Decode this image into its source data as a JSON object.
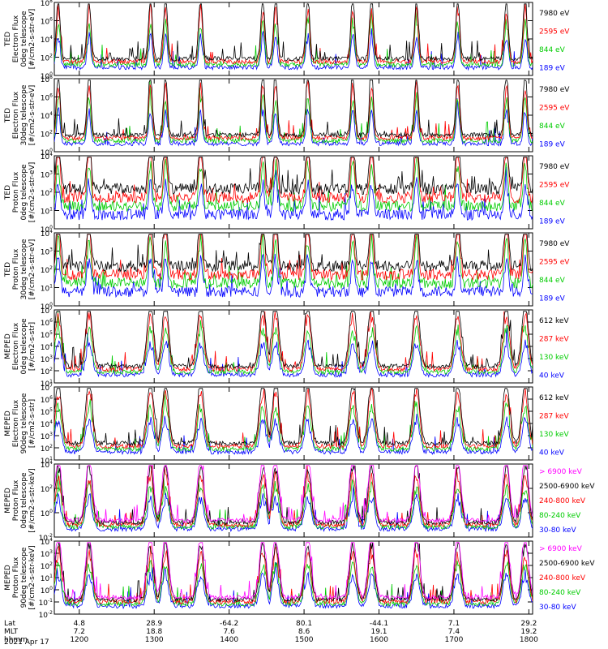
{
  "chart_data": {
    "type": "line",
    "date_label": "2021 Apr 17",
    "x_rows": [
      {
        "label": "Lat",
        "values": [
          "4.8",
          "28.9",
          "-64.2",
          "80.1",
          "-44.1",
          "7.1",
          "29.2"
        ]
      },
      {
        "label": "MLT",
        "values": [
          "7.2",
          "18.8",
          "7.6",
          "8.6",
          "19.1",
          "7.4",
          "19.2"
        ]
      },
      {
        "label": "hhmm",
        "values": [
          "1200",
          "1300",
          "1400",
          "1500",
          "1600",
          "1700",
          "1800"
        ]
      }
    ],
    "x_hours": [
      12,
      13,
      14,
      15,
      16,
      17,
      18
    ],
    "panels": [
      {
        "ylabel": [
          "TED",
          "Electron Flux",
          "0deg telescope",
          "[#/cm2-s-str-eV]"
        ],
        "ytick_exponents": [
          0,
          2,
          4,
          6,
          8
        ],
        "series": [
          {
            "name": "7980 eV",
            "color": "#000000"
          },
          {
            "name": "2595 eV",
            "color": "#ff0000"
          },
          {
            "name": "844 eV",
            "color": "#00cc00"
          },
          {
            "name": "189 eV",
            "color": "#0000ff"
          }
        ]
      },
      {
        "ylabel": [
          "TED",
          "Electron Flux",
          "30deg telescope",
          "[#/cm2-s-str-eV]"
        ],
        "ytick_exponents": [
          0,
          2,
          4,
          6,
          8
        ],
        "series": [
          {
            "name": "7980 eV",
            "color": "#000000"
          },
          {
            "name": "2595 eV",
            "color": "#ff0000"
          },
          {
            "name": "844 eV",
            "color": "#00cc00"
          },
          {
            "name": "189 eV",
            "color": "#0000ff"
          }
        ]
      },
      {
        "ylabel": [
          "TED",
          "Proton Flux",
          "0deg telescope",
          "[#/cm2-s-str-eV]"
        ],
        "ytick_exponents": [
          0,
          1,
          2,
          3,
          4
        ],
        "series": [
          {
            "name": "7980 eV",
            "color": "#000000"
          },
          {
            "name": "2595 eV",
            "color": "#ff0000"
          },
          {
            "name": "844 eV",
            "color": "#00cc00"
          },
          {
            "name": "189 eV",
            "color": "#0000ff"
          }
        ]
      },
      {
        "ylabel": [
          "TED",
          "Proton Flux",
          "30deg telescope",
          "[#/cm2-s-str-eV]"
        ],
        "ytick_exponents": [
          0,
          1,
          2,
          3,
          4
        ],
        "series": [
          {
            "name": "7980 eV",
            "color": "#000000"
          },
          {
            "name": "2595 eV",
            "color": "#ff0000"
          },
          {
            "name": "844 eV",
            "color": "#00cc00"
          },
          {
            "name": "189 eV",
            "color": "#0000ff"
          }
        ]
      },
      {
        "ylabel": [
          "MEPED",
          "Electron Flux",
          "0deg telescope",
          "[#/cm2-s-str]"
        ],
        "ytick_exponents": [
          1,
          2,
          3,
          4,
          5,
          6,
          7
        ],
        "series": [
          {
            "name": "612 keV",
            "color": "#000000"
          },
          {
            "name": "287 keV",
            "color": "#ff0000"
          },
          {
            "name": "130 keV",
            "color": "#00cc00"
          },
          {
            "name": "40 keV",
            "color": "#0000ff"
          }
        ]
      },
      {
        "ylabel": [
          "MEPED",
          "Electron Flux",
          "90deg telescope",
          "[#/cm2-s-str]"
        ],
        "ytick_exponents": [
          1,
          2,
          3,
          4,
          5,
          6,
          7
        ],
        "series": [
          {
            "name": "612 keV",
            "color": "#000000"
          },
          {
            "name": "287 keV",
            "color": "#ff0000"
          },
          {
            "name": "130 keV",
            "color": "#00cc00"
          },
          {
            "name": "40 keV",
            "color": "#0000ff"
          }
        ]
      },
      {
        "ylabel": [
          "MEPED",
          "Proton Flux",
          "0deg telescope",
          "[#/cm2-s-str-keV]"
        ],
        "ytick_exponents": [
          -2,
          0,
          2,
          4
        ],
        "series": [
          {
            "name": "> 6900 keV",
            "color": "#ff00ff"
          },
          {
            "name": "2500-6900 keV",
            "color": "#000000"
          },
          {
            "name": "240-800 keV",
            "color": "#ff0000"
          },
          {
            "name": "80-240 keV",
            "color": "#00cc00"
          },
          {
            "name": "30-80 keV",
            "color": "#0000ff"
          }
        ]
      },
      {
        "ylabel": [
          "MEPED",
          "Proton Flux",
          "90deg telescope",
          "[#/cm2-s-str-keV]"
        ],
        "ytick_exponents": [
          -2,
          -1,
          0,
          1,
          2,
          3,
          4
        ],
        "series": [
          {
            "name": "> 6900 keV",
            "color": "#ff00ff"
          },
          {
            "name": "2500-6900 keV",
            "color": "#000000"
          },
          {
            "name": "240-800 keV",
            "color": "#ff0000"
          },
          {
            "name": "80-240 keV",
            "color": "#00cc00"
          },
          {
            "name": "30-80 keV",
            "color": "#0000ff"
          }
        ]
      }
    ]
  }
}
